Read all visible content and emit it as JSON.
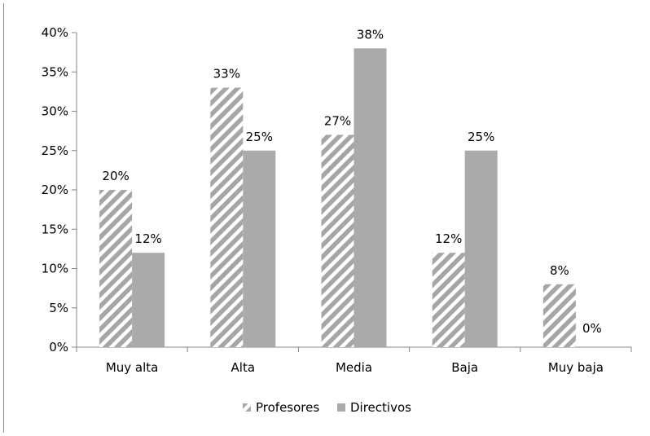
{
  "chart_data": {
    "type": "bar",
    "categories": [
      "Muy alta",
      "Alta",
      "Media",
      "Baja",
      "Muy baja"
    ],
    "series": [
      {
        "name": "Profesores",
        "values": [
          20,
          33,
          27,
          12,
          8
        ],
        "labels": [
          "20%",
          "33%",
          "27%",
          "12%",
          "8%"
        ],
        "pattern": "diagonal-hatch",
        "color": "#a6a6a6"
      },
      {
        "name": "Directivos",
        "values": [
          12,
          25,
          38,
          25,
          0
        ],
        "labels": [
          "12%",
          "25%",
          "38%",
          "25%",
          "0%"
        ],
        "pattern": "solid",
        "color": "#aaaaaa"
      }
    ],
    "ylim": [
      0,
      40
    ],
    "yticks": [
      0,
      5,
      10,
      15,
      20,
      25,
      30,
      35,
      40
    ],
    "ytick_labels": [
      "0%",
      "5%",
      "10%",
      "15%",
      "20%",
      "25%",
      "30%",
      "35%",
      "40%"
    ],
    "grid": false,
    "legend_position": "bottom",
    "title": "",
    "xlabel": "",
    "ylabel": ""
  }
}
